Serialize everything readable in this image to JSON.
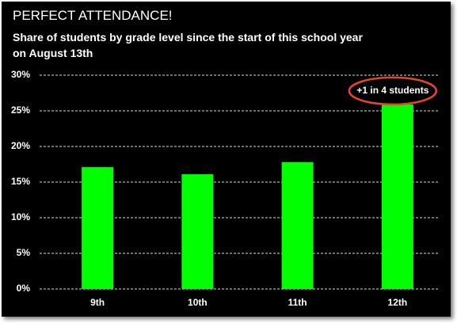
{
  "chart_data": {
    "type": "bar",
    "title": "PERFECT ATTENDANCE!",
    "subtitle": "Share of students by grade level since the start of this school year on August 13th",
    "categories": [
      "9th",
      "10th",
      "11th",
      "12th"
    ],
    "values": [
      17.1,
      16.1,
      17.8,
      25.9
    ],
    "color": "#00ff00",
    "ylim": [
      0,
      30
    ],
    "yticks": [
      {
        "value": 0,
        "label": "0%"
      },
      {
        "value": 5,
        "label": "5%"
      },
      {
        "value": 10,
        "label": "10%"
      },
      {
        "value": 15,
        "label": "15%"
      },
      {
        "value": 20,
        "label": "20%"
      },
      {
        "value": 25,
        "label": "25%"
      },
      {
        "value": 30,
        "label": "30%"
      }
    ],
    "grid": true,
    "annotation": "+1 in 4 students"
  }
}
